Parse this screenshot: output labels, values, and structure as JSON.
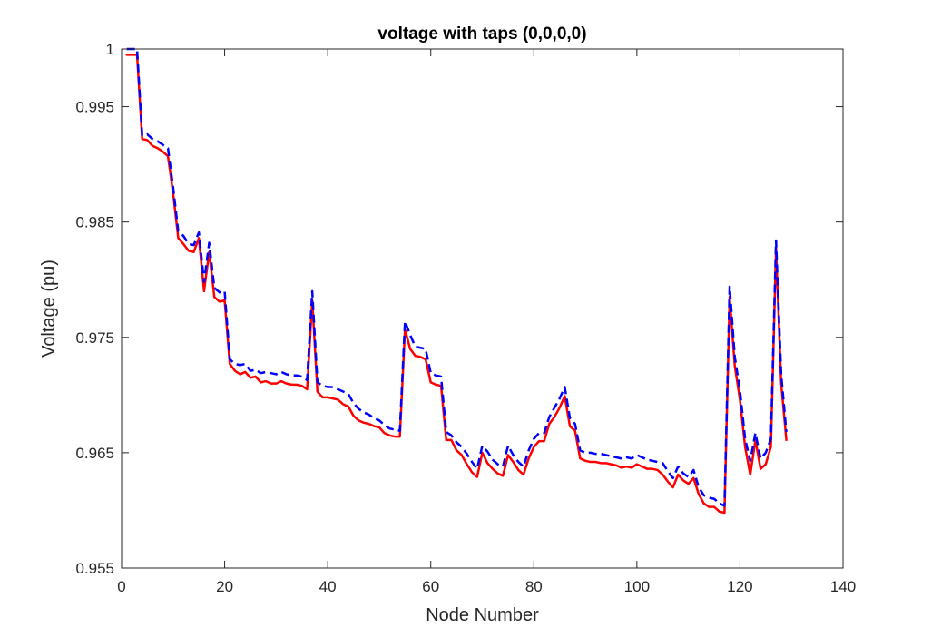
{
  "chart_data": {
    "type": "line",
    "title": "voltage with taps (0,0,0,0)",
    "xlabel": "Node Number",
    "ylabel": "Voltage (pu)",
    "xlim": [
      0,
      140
    ],
    "ylim": [
      0.955,
      1.0
    ],
    "x_ticks": [
      0,
      20,
      40,
      60,
      80,
      100,
      120,
      140
    ],
    "x_tick_labels": [
      "0",
      "20",
      "40",
      "60",
      "80",
      "100",
      "120",
      "140"
    ],
    "y_ticks": [
      0.955,
      0.965,
      0.975,
      0.985,
      0.995,
      1.0
    ],
    "y_tick_labels": [
      "0.955",
      "0.965",
      "0.975",
      "0.985",
      "0.995",
      "1"
    ],
    "grid": false,
    "series": [
      {
        "color": "#ff0000",
        "style": "solid",
        "points": [
          [
            1,
            0.9995
          ],
          [
            2,
            0.9995
          ],
          [
            3,
            0.9995
          ],
          [
            4,
            0.9922
          ],
          [
            5,
            0.9921
          ],
          [
            6,
            0.9916
          ],
          [
            7,
            0.9914
          ],
          [
            8,
            0.9911
          ],
          [
            9,
            0.9907
          ],
          [
            10,
            0.9875
          ],
          [
            11,
            0.9836
          ],
          [
            12,
            0.9831
          ],
          [
            13,
            0.9825
          ],
          [
            14,
            0.9824
          ],
          [
            15,
            0.9836
          ],
          [
            16,
            0.979
          ],
          [
            17,
            0.9824
          ],
          [
            18,
            0.9785
          ],
          [
            19,
            0.9781
          ],
          [
            20,
            0.9782
          ],
          [
            21,
            0.9727
          ],
          [
            22,
            0.9721
          ],
          [
            23,
            0.9718
          ],
          [
            24,
            0.972
          ],
          [
            25,
            0.9715
          ],
          [
            26,
            0.9716
          ],
          [
            27,
            0.9711
          ],
          [
            28,
            0.9712
          ],
          [
            29,
            0.971
          ],
          [
            30,
            0.971
          ],
          [
            31,
            0.9712
          ],
          [
            32,
            0.971
          ],
          [
            33,
            0.9709
          ],
          [
            34,
            0.9709
          ],
          [
            35,
            0.9708
          ],
          [
            36,
            0.9705
          ],
          [
            37,
            0.9782
          ],
          [
            38,
            0.9703
          ],
          [
            39,
            0.9698
          ],
          [
            40,
            0.9698
          ],
          [
            41,
            0.9697
          ],
          [
            42,
            0.9696
          ],
          [
            43,
            0.9692
          ],
          [
            44,
            0.969
          ],
          [
            45,
            0.9682
          ],
          [
            46,
            0.9678
          ],
          [
            47,
            0.9676
          ],
          [
            48,
            0.9675
          ],
          [
            49,
            0.9673
          ],
          [
            50,
            0.9672
          ],
          [
            51,
            0.9667
          ],
          [
            52,
            0.9665
          ],
          [
            53,
            0.9664
          ],
          [
            54,
            0.9664
          ],
          [
            55,
            0.9757
          ],
          [
            56,
            0.974
          ],
          [
            57,
            0.9734
          ],
          [
            58,
            0.9733
          ],
          [
            59,
            0.9731
          ],
          [
            60,
            0.9711
          ],
          [
            61,
            0.9709
          ],
          [
            62,
            0.9708
          ],
          [
            63,
            0.9661
          ],
          [
            64,
            0.9661
          ],
          [
            65,
            0.9652
          ],
          [
            66,
            0.9648
          ],
          [
            67,
            0.964
          ],
          [
            68,
            0.9633
          ],
          [
            69,
            0.9629
          ],
          [
            70,
            0.965
          ],
          [
            71,
            0.9641
          ],
          [
            72,
            0.9636
          ],
          [
            73,
            0.9632
          ],
          [
            74,
            0.963
          ],
          [
            75,
            0.9648
          ],
          [
            76,
            0.9642
          ],
          [
            77,
            0.9635
          ],
          [
            78,
            0.9631
          ],
          [
            79,
            0.9645
          ],
          [
            80,
            0.9655
          ],
          [
            81,
            0.966
          ],
          [
            82,
            0.966
          ],
          [
            83,
            0.9675
          ],
          [
            84,
            0.9681
          ],
          [
            85,
            0.9689
          ],
          [
            86,
            0.9699
          ],
          [
            87,
            0.9673
          ],
          [
            88,
            0.9669
          ],
          [
            89,
            0.9645
          ],
          [
            90,
            0.9643
          ],
          [
            91,
            0.9642
          ],
          [
            92,
            0.9642
          ],
          [
            93,
            0.9641
          ],
          [
            94,
            0.9641
          ],
          [
            95,
            0.964
          ],
          [
            96,
            0.9639
          ],
          [
            97,
            0.9637
          ],
          [
            98,
            0.9638
          ],
          [
            99,
            0.9637
          ],
          [
            100,
            0.964
          ],
          [
            101,
            0.9638
          ],
          [
            102,
            0.9636
          ],
          [
            103,
            0.9636
          ],
          [
            104,
            0.9635
          ],
          [
            105,
            0.9631
          ],
          [
            106,
            0.9625
          ],
          [
            107,
            0.962
          ],
          [
            108,
            0.9631
          ],
          [
            109,
            0.9626
          ],
          [
            110,
            0.9623
          ],
          [
            111,
            0.9628
          ],
          [
            112,
            0.9614
          ],
          [
            113,
            0.9606
          ],
          [
            114,
            0.9603
          ],
          [
            115,
            0.9603
          ],
          [
            116,
            0.9599
          ],
          [
            117,
            0.9598
          ],
          [
            118,
            0.9785
          ],
          [
            119,
            0.9725
          ],
          [
            120,
            0.9696
          ],
          [
            121,
            0.9655
          ],
          [
            122,
            0.9631
          ],
          [
            123,
            0.9661
          ],
          [
            124,
            0.9636
          ],
          [
            125,
            0.964
          ],
          [
            126,
            0.9655
          ],
          [
            127,
            0.9827
          ],
          [
            128,
            0.971
          ],
          [
            129,
            0.9661
          ]
        ]
      },
      {
        "color": "#0000ff",
        "style": "dashed",
        "points": [
          [
            1,
            1.0
          ],
          [
            2,
            1.0
          ],
          [
            3,
            1.0
          ],
          [
            4,
            0.9925
          ],
          [
            5,
            0.9926
          ],
          [
            6,
            0.9922
          ],
          [
            7,
            0.992
          ],
          [
            8,
            0.9917
          ],
          [
            9,
            0.9914
          ],
          [
            10,
            0.988
          ],
          [
            11,
            0.9842
          ],
          [
            12,
            0.9838
          ],
          [
            13,
            0.9831
          ],
          [
            14,
            0.983
          ],
          [
            15,
            0.9841
          ],
          [
            16,
            0.9798
          ],
          [
            17,
            0.9832
          ],
          [
            18,
            0.9793
          ],
          [
            19,
            0.9789
          ],
          [
            20,
            0.979
          ],
          [
            21,
            0.9731
          ],
          [
            22,
            0.9727
          ],
          [
            23,
            0.9726
          ],
          [
            24,
            0.9727
          ],
          [
            25,
            0.9721
          ],
          [
            26,
            0.9722
          ],
          [
            27,
            0.9719
          ],
          [
            28,
            0.972
          ],
          [
            29,
            0.9719
          ],
          [
            30,
            0.9718
          ],
          [
            31,
            0.972
          ],
          [
            32,
            0.9718
          ],
          [
            33,
            0.9717
          ],
          [
            34,
            0.9717
          ],
          [
            35,
            0.9716
          ],
          [
            36,
            0.9713
          ],
          [
            37,
            0.979
          ],
          [
            38,
            0.9711
          ],
          [
            39,
            0.9708
          ],
          [
            40,
            0.9707
          ],
          [
            41,
            0.9707
          ],
          [
            42,
            0.9705
          ],
          [
            43,
            0.9703
          ],
          [
            44,
            0.9701
          ],
          [
            45,
            0.9693
          ],
          [
            46,
            0.9688
          ],
          [
            47,
            0.9685
          ],
          [
            48,
            0.9683
          ],
          [
            49,
            0.968
          ],
          [
            50,
            0.9678
          ],
          [
            51,
            0.9674
          ],
          [
            52,
            0.9671
          ],
          [
            53,
            0.967
          ],
          [
            54,
            0.9669
          ],
          [
            55,
            0.9764
          ],
          [
            56,
            0.9752
          ],
          [
            57,
            0.9742
          ],
          [
            58,
            0.9741
          ],
          [
            59,
            0.974
          ],
          [
            60,
            0.9719
          ],
          [
            61,
            0.9717
          ],
          [
            62,
            0.9716
          ],
          [
            63,
            0.9668
          ],
          [
            64,
            0.9665
          ],
          [
            65,
            0.9659
          ],
          [
            66,
            0.9655
          ],
          [
            67,
            0.9649
          ],
          [
            68,
            0.9642
          ],
          [
            69,
            0.9636
          ],
          [
            70,
            0.9656
          ],
          [
            71,
            0.9651
          ],
          [
            72,
            0.9644
          ],
          [
            73,
            0.964
          ],
          [
            74,
            0.9638
          ],
          [
            75,
            0.9656
          ],
          [
            76,
            0.9648
          ],
          [
            77,
            0.9642
          ],
          [
            78,
            0.9638
          ],
          [
            79,
            0.9652
          ],
          [
            80,
            0.9662
          ],
          [
            81,
            0.9667
          ],
          [
            82,
            0.9667
          ],
          [
            83,
            0.9681
          ],
          [
            84,
            0.9689
          ],
          [
            85,
            0.9697
          ],
          [
            86,
            0.9707
          ],
          [
            87,
            0.968
          ],
          [
            88,
            0.9675
          ],
          [
            89,
            0.9652
          ],
          [
            90,
            0.965
          ],
          [
            91,
            0.965
          ],
          [
            92,
            0.9649
          ],
          [
            93,
            0.9649
          ],
          [
            94,
            0.9648
          ],
          [
            95,
            0.9647
          ],
          [
            96,
            0.9646
          ],
          [
            97,
            0.9645
          ],
          [
            98,
            0.9646
          ],
          [
            99,
            0.9645
          ],
          [
            100,
            0.9648
          ],
          [
            101,
            0.9646
          ],
          [
            102,
            0.9644
          ],
          [
            103,
            0.9643
          ],
          [
            104,
            0.9642
          ],
          [
            105,
            0.9641
          ],
          [
            106,
            0.9634
          ],
          [
            107,
            0.9628
          ],
          [
            108,
            0.9638
          ],
          [
            109,
            0.9632
          ],
          [
            110,
            0.9629
          ],
          [
            111,
            0.9635
          ],
          [
            112,
            0.962
          ],
          [
            113,
            0.9613
          ],
          [
            114,
            0.9611
          ],
          [
            115,
            0.961
          ],
          [
            116,
            0.9606
          ],
          [
            117,
            0.9604
          ],
          [
            118,
            0.9794
          ],
          [
            119,
            0.9733
          ],
          [
            120,
            0.9704
          ],
          [
            121,
            0.9662
          ],
          [
            122,
            0.9643
          ],
          [
            123,
            0.9667
          ],
          [
            124,
            0.9645
          ],
          [
            125,
            0.965
          ],
          [
            126,
            0.9662
          ],
          [
            127,
            0.9834
          ],
          [
            128,
            0.9718
          ],
          [
            129,
            0.9668
          ]
        ]
      }
    ]
  }
}
